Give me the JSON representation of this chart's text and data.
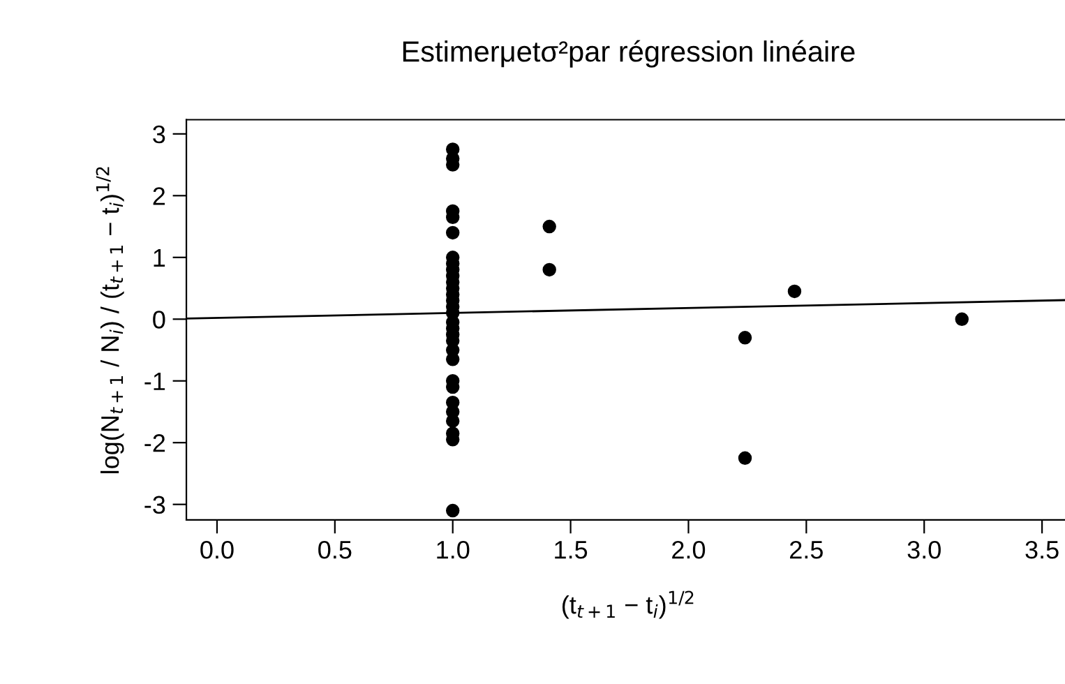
{
  "chart_data": {
    "type": "scatter",
    "title": "Estimerμetσ²par régression linéaire",
    "xlabel": "(t$_{t+1}$ − t$_{i}$)$^{1/2}$",
    "ylabel": "log(N$_{t+1}$ / N$_{i}$) / (t$_{t+1}$ − t$_{i}$)$^{1/2}$",
    "grid": false,
    "xlim": [
      -0.13,
      3.62
    ],
    "ylim": [
      -3.25,
      3.23
    ],
    "xticks": [
      {
        "value": 0,
        "label": "0.0"
      },
      {
        "value": 0.5,
        "label": "0.5"
      },
      {
        "value": 1,
        "label": "1.0"
      },
      {
        "value": 1.5,
        "label": "1.5"
      },
      {
        "value": 2,
        "label": "2.0"
      },
      {
        "value": 2.5,
        "label": "2.5"
      },
      {
        "value": 3,
        "label": "3.0"
      },
      {
        "value": 3.5,
        "label": "3.5"
      }
    ],
    "yticks": [
      {
        "value": -3,
        "label": "-3"
      },
      {
        "value": -2,
        "label": "-2"
      },
      {
        "value": -1,
        "label": "-1"
      },
      0,
      1,
      2,
      3
    ],
    "series": [
      {
        "marker": "circle",
        "color": "#000000",
        "x": [
          1,
          1,
          1,
          1,
          1,
          1,
          1,
          1,
          1,
          1,
          1,
          1,
          1,
          1,
          1,
          1,
          1,
          1,
          1,
          1,
          1,
          1,
          1,
          1,
          1,
          1,
          1,
          1,
          1,
          1,
          1.41,
          1.41,
          2.24,
          2.24,
          2.45,
          3.16
        ],
        "values": [
          2.75,
          2.6,
          2.5,
          1.75,
          1.65,
          1.4,
          1.0,
          0.9,
          0.8,
          0.7,
          0.6,
          0.5,
          0.4,
          0.3,
          0.2,
          0.1,
          -0.05,
          -0.15,
          -0.25,
          -0.35,
          -0.5,
          -0.65,
          -1.0,
          -1.1,
          -1.35,
          -1.5,
          -1.65,
          -1.85,
          -1.95,
          -3.1,
          1.5,
          0.8,
          -0.3,
          -2.25,
          0.45,
          0.0
        ]
      },
      {
        "type": "line",
        "marker": "none",
        "color": "#000000",
        "x": [
          -0.13,
          3.62
        ],
        "values": [
          0.01,
          0.31
        ]
      }
    ]
  }
}
